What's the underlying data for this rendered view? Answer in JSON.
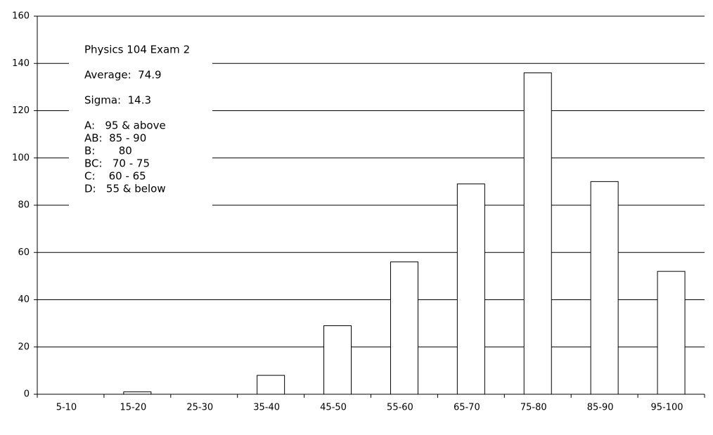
{
  "chart_data": {
    "type": "bar",
    "categories": [
      "5-10",
      "15-20",
      "25-30",
      "35-40",
      "45-50",
      "55-60",
      "65-70",
      "75-80",
      "85-90",
      "95-100"
    ],
    "values": [
      0,
      1,
      0,
      8,
      29,
      56,
      89,
      136,
      90,
      52
    ],
    "color": "#ffffff",
    "ylim": [
      0,
      160
    ],
    "yticks": [
      0,
      20,
      40,
      60,
      80,
      100,
      120,
      140,
      160
    ],
    "grid": true,
    "annotations": [
      "Physics 104 Exam 2",
      "Average:  74.9",
      "Sigma:  14.3",
      "A:   95 & above",
      "AB:  85 - 90",
      "B:       80",
      "BC:   70 - 75",
      "C:    60 - 65",
      "D:   55 & below"
    ]
  }
}
